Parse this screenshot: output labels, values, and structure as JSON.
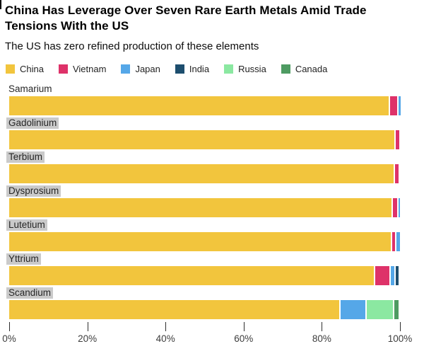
{
  "header": {
    "title": "China Has Leverage Over Seven Rare Earth Metals Amid Trade Tensions With the US",
    "subtitle": "The US has zero refined production of these elements"
  },
  "colors": {
    "label_highlight": "#cacaca",
    "tick": "#2e2e2e"
  },
  "chart_data": {
    "type": "bar",
    "orientation": "horizontal",
    "stacked": true,
    "grid": false,
    "legend_position": "top",
    "xlim": [
      0,
      100
    ],
    "x_ticks": [
      "0%",
      "20%",
      "40%",
      "60%",
      "80%",
      "100%"
    ],
    "categories": [
      "Samarium",
      "Gadolinium",
      "Terbium",
      "Dysprosium",
      "Lutetium",
      "Yttrium",
      "Scandium"
    ],
    "label_highlighted": [
      false,
      true,
      true,
      true,
      true,
      true,
      true
    ],
    "series": [
      {
        "name": "China",
        "color": "#F2C53D",
        "values": [
          97.1,
          98.5,
          98.4,
          97.9,
          97.7,
          93.3,
          84.5
        ]
      },
      {
        "name": "Vietnam",
        "color": "#DE3269",
        "values": [
          1.8,
          1.0,
          0.9,
          1.0,
          0.7,
          3.6,
          0
        ]
      },
      {
        "name": "Japan",
        "color": "#55A7E8",
        "values": [
          0.5,
          0,
          0,
          0.4,
          0.9,
          0.9,
          6.3
        ]
      },
      {
        "name": "India",
        "color": "#1D4E6E",
        "values": [
          0,
          0,
          0,
          0,
          0,
          0.8,
          0
        ]
      },
      {
        "name": "Russia",
        "color": "#8BE8A1",
        "values": [
          0,
          0,
          0,
          0,
          0,
          0,
          6.6
        ]
      },
      {
        "name": "Canada",
        "color": "#4E9B62",
        "values": [
          0,
          0,
          0,
          0,
          0,
          0,
          1.2
        ]
      }
    ]
  }
}
